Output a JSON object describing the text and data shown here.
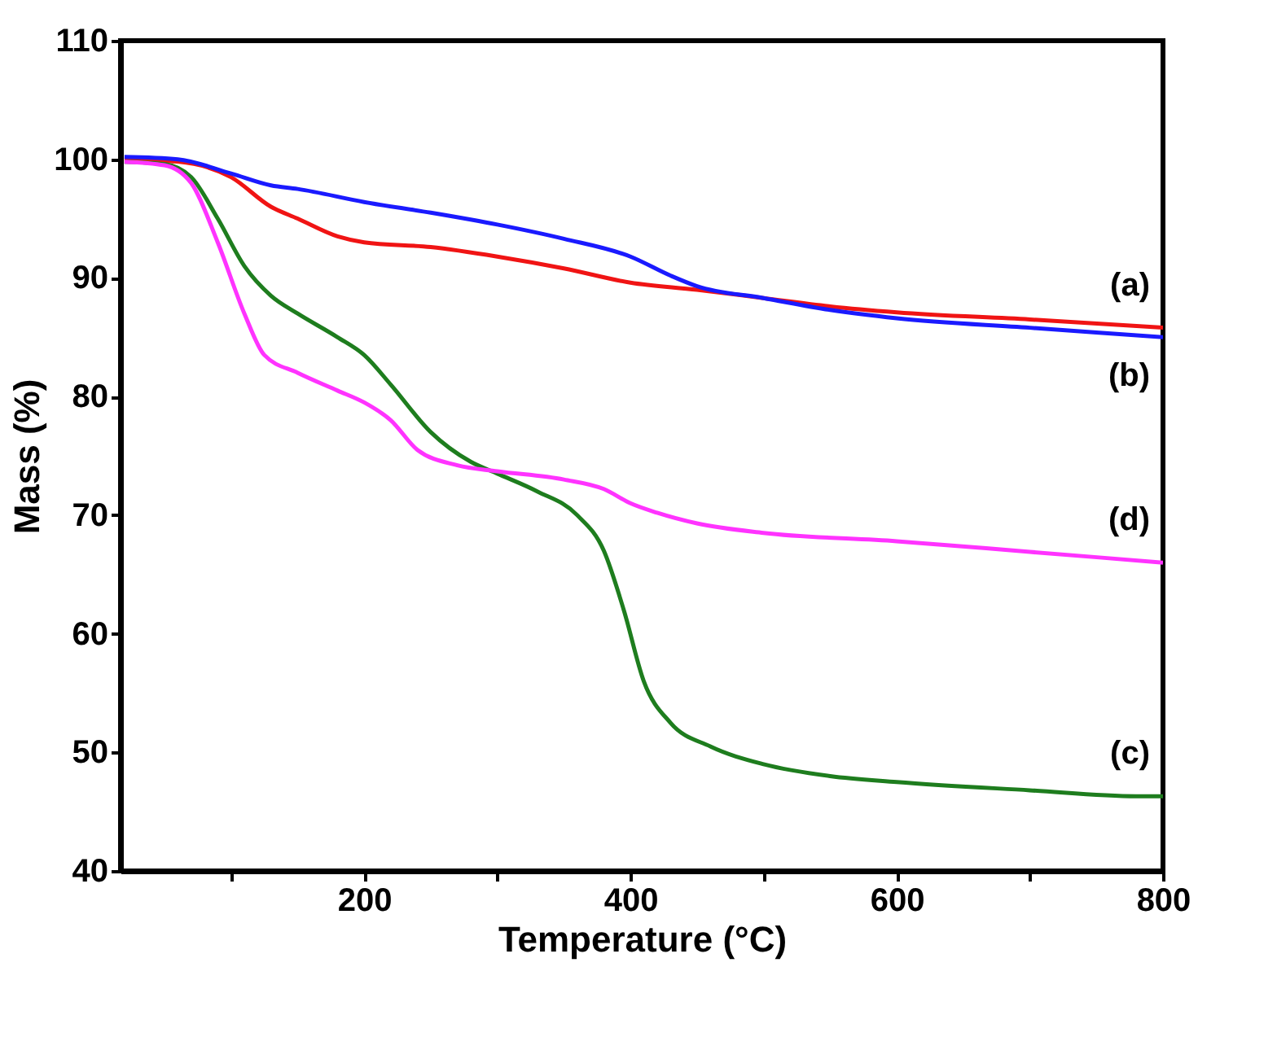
{
  "chart_data": {
    "type": "line",
    "xlabel": "Temperature (°C)",
    "ylabel": "Mass (%)",
    "xlim": [
      17,
      800
    ],
    "ylim": [
      40,
      110
    ],
    "xticks": [
      {
        "value": 100,
        "label": null
      },
      200,
      {
        "value": 300,
        "label": null
      },
      400,
      {
        "value": 500,
        "label": null
      },
      600,
      {
        "value": 700,
        "label": null
      },
      800
    ],
    "yticks": [
      40,
      50,
      60,
      70,
      80,
      90,
      100,
      110
    ],
    "grid": false,
    "line_style": "solid",
    "marker": "none",
    "series": [
      {
        "name": "(a)",
        "color": "#f01414",
        "x": [
          20,
          60,
          100,
          130,
          150,
          180,
          200,
          250,
          300,
          350,
          400,
          450,
          500,
          550,
          600,
          700,
          800
        ],
        "values": [
          100,
          99.8,
          98.5,
          96,
          95,
          93.5,
          93,
          92.6,
          91.8,
          90.8,
          89.6,
          89,
          88.3,
          87.6,
          87.1,
          86.5,
          85.8
        ]
      },
      {
        "name": "(b)",
        "color": "#1a1aff",
        "x": [
          20,
          60,
          100,
          130,
          150,
          200,
          250,
          300,
          350,
          400,
          430,
          450,
          500,
          550,
          600,
          700,
          800
        ],
        "values": [
          100.2,
          100,
          98.8,
          97.8,
          97.5,
          96.4,
          95.5,
          94.5,
          93.3,
          91.8,
          90.2,
          89.3,
          88.3,
          87.3,
          86.6,
          85.8,
          85
        ]
      },
      {
        "name": "(c)",
        "color": "#1e7d1e",
        "x": [
          20,
          50,
          70,
          90,
          110,
          130,
          150,
          180,
          200,
          220,
          250,
          280,
          300,
          330,
          360,
          380,
          395,
          410,
          430,
          460,
          500,
          550,
          600,
          700,
          780,
          800
        ],
        "values": [
          99.8,
          99.6,
          98.5,
          95,
          91,
          88.5,
          87,
          85,
          83.5,
          81,
          77,
          74.5,
          73.5,
          72,
          70,
          67,
          62,
          56,
          52.5,
          50.5,
          49,
          48,
          47.5,
          46.8,
          46.3,
          46.3
        ]
      },
      {
        "name": "(d)",
        "color": "#ff33ff",
        "x": [
          20,
          50,
          70,
          90,
          110,
          125,
          150,
          180,
          200,
          220,
          240,
          270,
          300,
          350,
          380,
          400,
          420,
          450,
          500,
          600,
          700,
          800
        ],
        "values": [
          99.8,
          99.5,
          98,
          93,
          87,
          83.5,
          82,
          80.5,
          79.5,
          78,
          75.5,
          74.2,
          73.7,
          73,
          72.2,
          71,
          70.2,
          69.3,
          68.5,
          67.8,
          66.9,
          66
        ]
      }
    ]
  }
}
